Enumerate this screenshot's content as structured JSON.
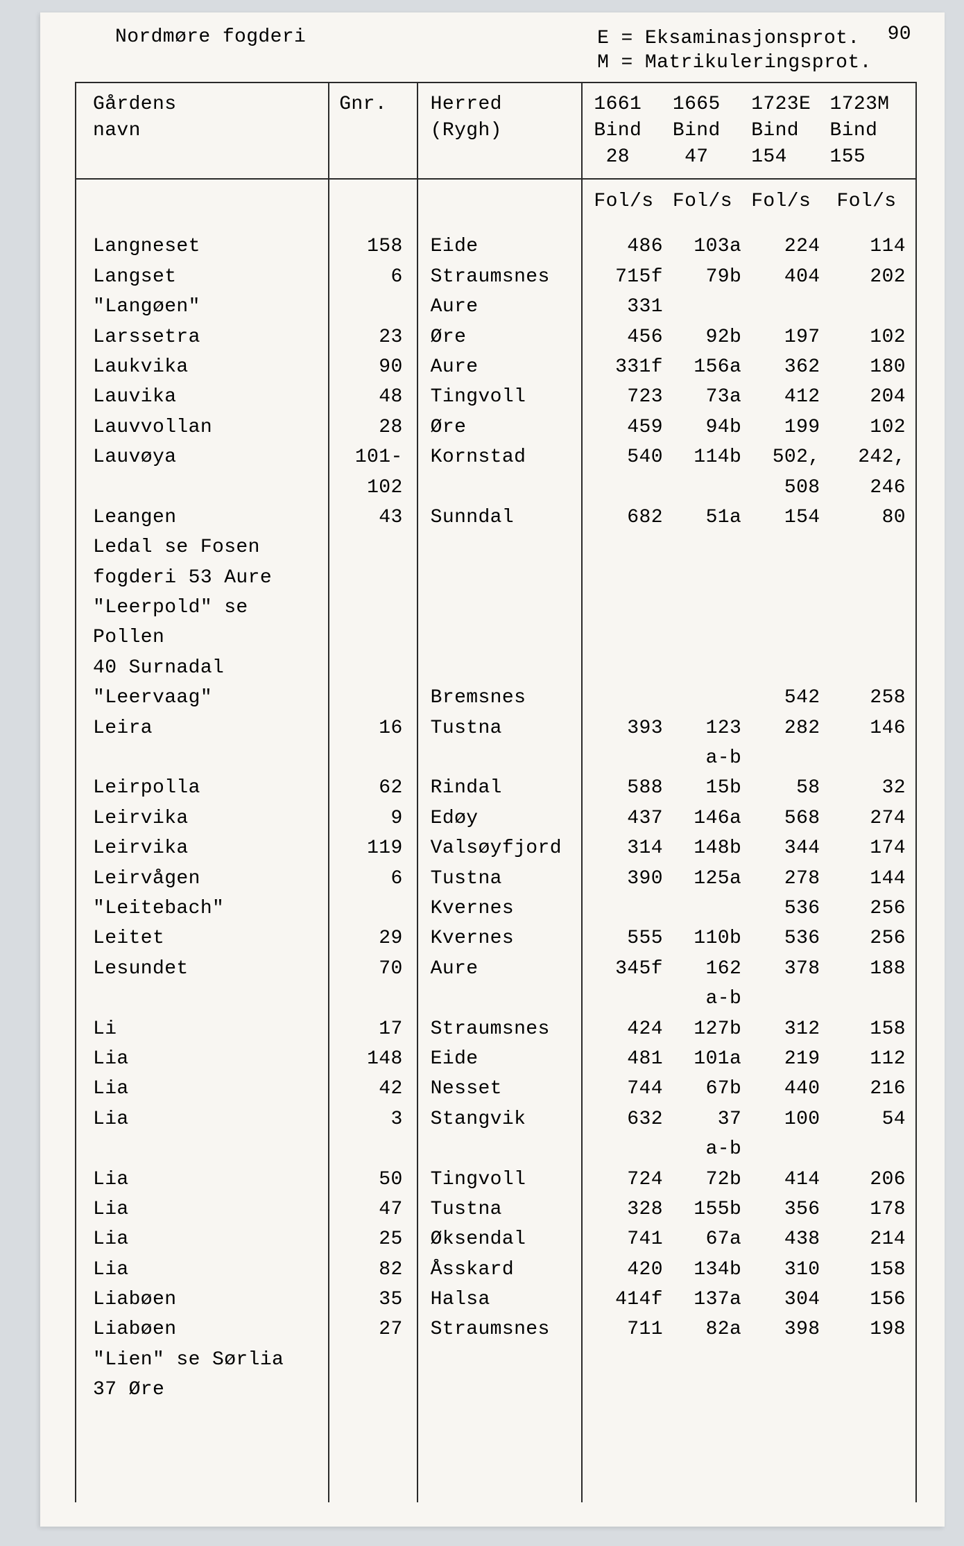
{
  "page_number": "90",
  "header_left": "Nordmøre fogderi",
  "legend": {
    "e": "E = Eksaminasjonsprot.",
    "m": "M = Matrikuleringsprot."
  },
  "columns": {
    "name_l1": "Gårdens",
    "name_l2": "navn",
    "gnr": "Gnr.",
    "herred_l1": "Herred",
    "herred_l2": "(Rygh)",
    "y1_l1": "1661",
    "y1_l2": "Bind",
    "y1_l3": "28",
    "y2_l1": "1665",
    "y2_l2": "Bind",
    "y2_l3": "47",
    "y3_l1": "1723E",
    "y3_l2": "Bind",
    "y3_l3": "154",
    "y4_l1": "1723M",
    "y4_l2": "Bind",
    "y4_l3": "155",
    "fols": "Fol/s"
  },
  "rows": [
    {
      "name": "Langneset",
      "gnr": "158",
      "herred": "Eide",
      "v1": "486",
      "v2": "103a",
      "v3": "224",
      "v4": "114"
    },
    {
      "name": "Langset",
      "gnr": "6",
      "herred": "Straumsnes",
      "v1": "715f",
      "v2": "79b",
      "v3": "404",
      "v4": "202"
    },
    {
      "name": "\"Langøen\"",
      "gnr": "",
      "herred": "Aure",
      "v1": "331",
      "v2": "",
      "v3": "",
      "v4": ""
    },
    {
      "name": "Larssetra",
      "gnr": "23",
      "herred": "Øre",
      "v1": "456",
      "v2": "92b",
      "v3": "197",
      "v4": "102"
    },
    {
      "name": "Laukvika",
      "gnr": "90",
      "herred": "Aure",
      "v1": "331f",
      "v2": "156a",
      "v3": "362",
      "v4": "180"
    },
    {
      "name": "Lauvika",
      "gnr": "48",
      "herred": "Tingvoll",
      "v1": "723",
      "v2": "73a",
      "v3": "412",
      "v4": "204"
    },
    {
      "name": "Lauvvollan",
      "gnr": "28",
      "herred": "Øre",
      "v1": "459",
      "v2": "94b",
      "v3": "199",
      "v4": "102"
    },
    {
      "name": "Lauvøya",
      "gnr": "101-\n102",
      "herred": "Kornstad",
      "v1": "540",
      "v2": "114b",
      "v3": "502,\n508",
      "v4": "242,\n246"
    },
    {
      "name": "Leangen",
      "gnr": "43",
      "herred": "Sunndal",
      "v1": "682",
      "v2": "51a",
      "v3": "154",
      "v4": "80"
    },
    {
      "name": "Ledal se Fosen\nfogderi 53 Aure",
      "gnr": "",
      "herred": "",
      "v1": "",
      "v2": "",
      "v3": "",
      "v4": ""
    },
    {
      "name": "\"Leerpold\" se Pollen\n40 Surnadal",
      "gnr": "",
      "herred": "",
      "v1": "",
      "v2": "",
      "v3": "",
      "v4": ""
    },
    {
      "name": "\"Leervaag\"",
      "gnr": "",
      "herred": "Bremsnes",
      "v1": "",
      "v2": "",
      "v3": "542",
      "v4": "258"
    },
    {
      "name": "Leira",
      "gnr": "16",
      "herred": "Tustna",
      "v1": "393",
      "v2": "123\na-b",
      "v3": "282",
      "v4": "146"
    },
    {
      "name": "Leirpolla",
      "gnr": "62",
      "herred": "Rindal",
      "v1": "588",
      "v2": "15b",
      "v3": "58",
      "v4": "32"
    },
    {
      "name": "Leirvika",
      "gnr": "9",
      "herred": "Edøy",
      "v1": "437",
      "v2": "146a",
      "v3": "568",
      "v4": "274"
    },
    {
      "name": "Leirvika",
      "gnr": "119",
      "herred": "Valsøyfjord",
      "v1": "314",
      "v2": "148b",
      "v3": "344",
      "v4": "174"
    },
    {
      "name": "Leirvågen",
      "gnr": "6",
      "herred": "Tustna",
      "v1": "390",
      "v2": "125a",
      "v3": "278",
      "v4": "144"
    },
    {
      "name": "\"Leitebach\"",
      "gnr": "",
      "herred": "Kvernes",
      "v1": "",
      "v2": "",
      "v3": "536",
      "v4": "256"
    },
    {
      "name": "Leitet",
      "gnr": "29",
      "herred": "Kvernes",
      "v1": "555",
      "v2": "110b",
      "v3": "536",
      "v4": "256"
    },
    {
      "name": "Lesundet",
      "gnr": "70",
      "herred": "Aure",
      "v1": "345f",
      "v2": "162\na-b",
      "v3": "378",
      "v4": "188"
    },
    {
      "name": "Li",
      "gnr": "17",
      "herred": "Straumsnes",
      "v1": "424",
      "v2": "127b",
      "v3": "312",
      "v4": "158"
    },
    {
      "name": "Lia",
      "gnr": "148",
      "herred": "Eide",
      "v1": "481",
      "v2": "101a",
      "v3": "219",
      "v4": "112"
    },
    {
      "name": "Lia",
      "gnr": "42",
      "herred": "Nesset",
      "v1": "744",
      "v2": "67b",
      "v3": "440",
      "v4": "216"
    },
    {
      "name": "Lia",
      "gnr": "3",
      "herred": "Stangvik",
      "v1": "632",
      "v2": "37\na-b",
      "v3": "100",
      "v4": "54"
    },
    {
      "name": "Lia",
      "gnr": "50",
      "herred": "Tingvoll",
      "v1": "724",
      "v2": "72b",
      "v3": "414",
      "v4": "206"
    },
    {
      "name": "Lia",
      "gnr": "47",
      "herred": "Tustna",
      "v1": "328",
      "v2": "155b",
      "v3": "356",
      "v4": "178"
    },
    {
      "name": "Lia",
      "gnr": "25",
      "herred": "Øksendal",
      "v1": "741",
      "v2": "67a",
      "v3": "438",
      "v4": "214"
    },
    {
      "name": "Lia",
      "gnr": "82",
      "herred": "Åsskard",
      "v1": "420",
      "v2": "134b",
      "v3": "310",
      "v4": "158"
    },
    {
      "name": "Liabøen",
      "gnr": "35",
      "herred": "Halsa",
      "v1": "414f",
      "v2": "137a",
      "v3": "304",
      "v4": "156"
    },
    {
      "name": "Liabøen",
      "gnr": "27",
      "herred": "Straumsnes",
      "v1": "711",
      "v2": "82a",
      "v3": "398",
      "v4": "198"
    },
    {
      "name": "\"Lien\" se Sørlia\n37 Øre",
      "gnr": "",
      "herred": "",
      "v1": "",
      "v2": "",
      "v3": "",
      "v4": ""
    }
  ]
}
